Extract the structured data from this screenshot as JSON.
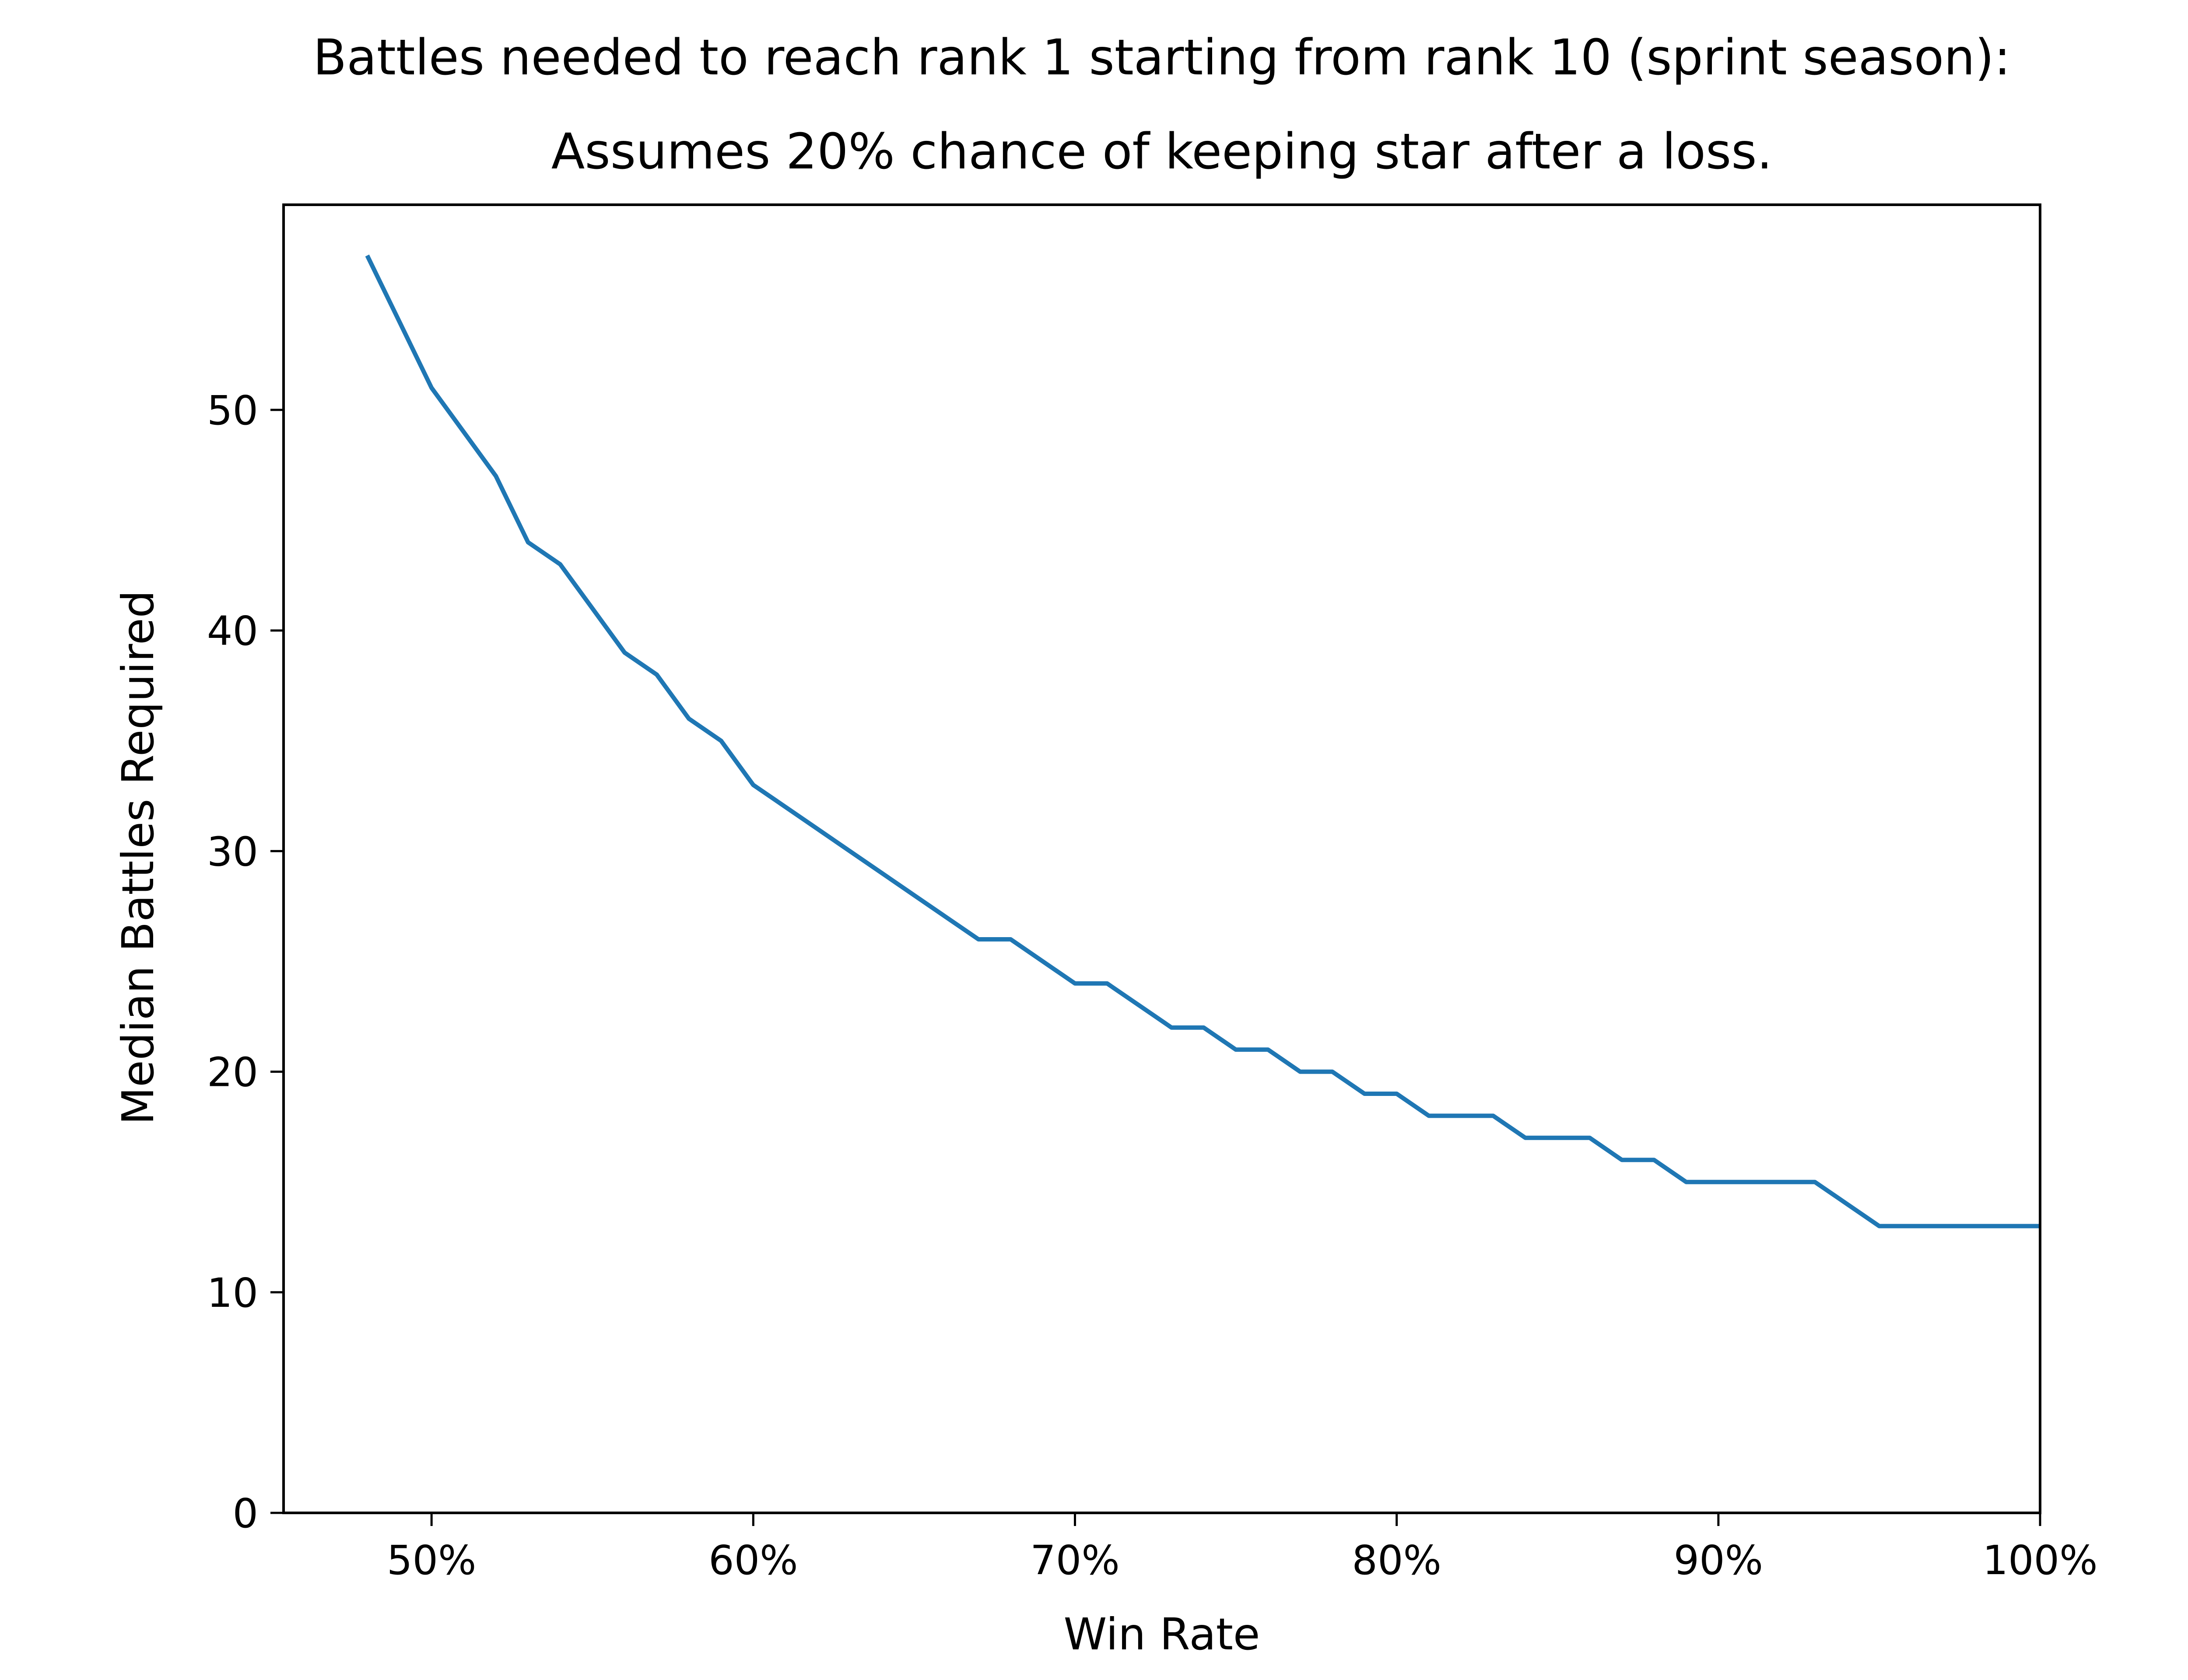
{
  "chart_data": {
    "type": "line",
    "title": "Battles needed to reach rank 1 starting from rank 10 (sprint season):",
    "subtitle": "Assumes 20% chance of keeping star after a loss.",
    "xlabel": "Win Rate",
    "ylabel": "Median Battles Required",
    "xlim": [
      45.4,
      100
    ],
    "ylim": [
      0,
      59.3
    ],
    "x_ticks": [
      {
        "value": 50,
        "label": "50%"
      },
      {
        "value": 60,
        "label": "60%"
      },
      {
        "value": 70,
        "label": "70%"
      },
      {
        "value": 80,
        "label": "80%"
      },
      {
        "value": 90,
        "label": "90%"
      },
      {
        "value": 100,
        "label": "100%"
      }
    ],
    "y_ticks": [
      {
        "value": 0,
        "label": "0"
      },
      {
        "value": 10,
        "label": "10"
      },
      {
        "value": 20,
        "label": "20"
      },
      {
        "value": 30,
        "label": "30"
      },
      {
        "value": 40,
        "label": "40"
      },
      {
        "value": 50,
        "label": "50"
      }
    ],
    "grid": false,
    "series": [
      {
        "color": "#1f77b4",
        "x": [
          48,
          49,
          50,
          51,
          52,
          53,
          54,
          55,
          56,
          57,
          58,
          59,
          60,
          61,
          62,
          63,
          64,
          65,
          66,
          67,
          68,
          69,
          70,
          71,
          72,
          73,
          74,
          75,
          76,
          77,
          78,
          79,
          80,
          81,
          82,
          83,
          84,
          85,
          86,
          87,
          88,
          89,
          90,
          91,
          92,
          93,
          94,
          95,
          96,
          97,
          98,
          99,
          100
        ],
        "values": [
          57,
          54,
          51,
          49,
          47,
          44,
          43,
          41,
          39,
          38,
          36,
          35,
          33,
          32,
          31,
          30,
          29,
          28,
          27,
          26,
          26,
          25,
          24,
          24,
          23,
          22,
          22,
          21,
          21,
          20,
          20,
          19,
          19,
          18,
          18,
          18,
          17,
          17,
          17,
          16,
          16,
          15,
          15,
          15,
          15,
          15,
          14,
          13,
          13,
          13,
          13,
          13,
          13
        ]
      }
    ]
  }
}
